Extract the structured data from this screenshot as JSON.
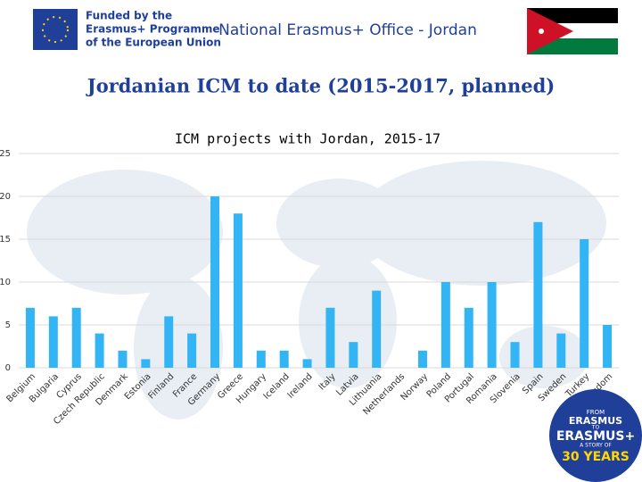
{
  "header": {
    "eu_text": [
      "Funded by the",
      "Erasmus+ Programme",
      "of the European Union"
    ],
    "office": "National Erasmus+ Office - Jordan",
    "title": "Jordanian ICM to date (2015-2017, planned)"
  },
  "logo": {
    "lines": [
      "FROM",
      "ERASMUS",
      "TO",
      "ERASMUS+",
      "A STORY OF",
      "30 YEARS"
    ]
  },
  "chart_data": {
    "type": "bar",
    "title": "ICM projects with Jordan, 2015-17",
    "categories": [
      "Belgium",
      "Bulgaria",
      "Cyprus",
      "Czech Republic",
      "Denmark",
      "Estonia",
      "Finland",
      "France",
      "Germany",
      "Greece",
      "Hungary",
      "Iceland",
      "Ireland",
      "Italy",
      "Latvia",
      "Lithuania",
      "Netherlands",
      "Norway",
      "Poland",
      "Portugal",
      "Romania",
      "Slovenia",
      "Spain",
      "Sweden",
      "Turkey",
      "United Kingdom"
    ],
    "values": [
      7,
      6,
      7,
      4,
      2,
      1,
      6,
      4,
      20,
      18,
      2,
      2,
      1,
      7,
      3,
      9,
      0,
      2,
      10,
      7,
      10,
      3,
      17,
      4,
      15,
      5
    ],
    "color": "#33b5f5",
    "ylim": [
      0,
      25
    ],
    "yticks": [
      0,
      5,
      10,
      15,
      20,
      25
    ]
  }
}
